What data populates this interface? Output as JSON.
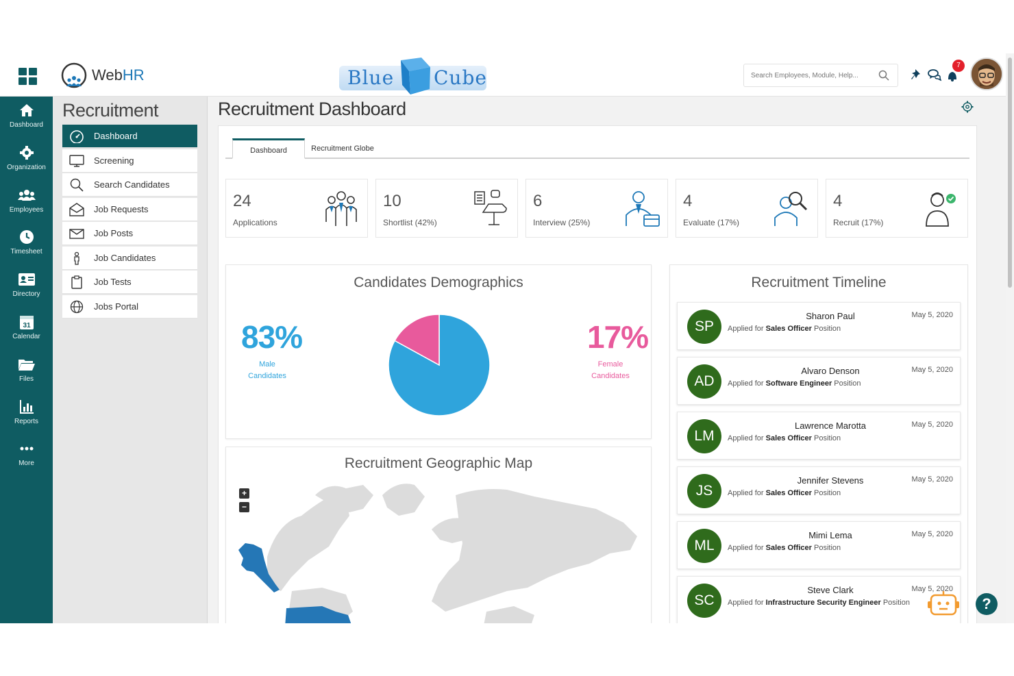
{
  "header": {
    "app_name_prefix": "Web",
    "app_name_suffix": "HR",
    "brand_word1": "Blue",
    "brand_word2": "Cube",
    "search_placeholder": "Search Employees, Module, Help...",
    "notification_count": "7"
  },
  "leftnav": {
    "items": [
      {
        "label": "Dashboard",
        "icon": "home-icon"
      },
      {
        "label": "Organization",
        "icon": "gear-icon"
      },
      {
        "label": "Employees",
        "icon": "users-icon"
      },
      {
        "label": "Timesheet",
        "icon": "clock-icon"
      },
      {
        "label": "Directory",
        "icon": "id-card-icon"
      },
      {
        "label": "Calendar",
        "icon": "calendar-icon"
      },
      {
        "label": "Files",
        "icon": "folder-icon"
      },
      {
        "label": "Reports",
        "icon": "chart-icon"
      },
      {
        "label": "More",
        "icon": "ellipsis-icon"
      }
    ],
    "calendar_day": "31"
  },
  "subnav": {
    "title": "Recruitment",
    "items": [
      {
        "label": "Dashboard",
        "icon": "dashboard-gauge-icon"
      },
      {
        "label": "Screening",
        "icon": "monitor-icon"
      },
      {
        "label": "Search Candidates",
        "icon": "magnifier-icon"
      },
      {
        "label": "Job Requests",
        "icon": "envelope-open-icon"
      },
      {
        "label": "Job Posts",
        "icon": "envelope-icon"
      },
      {
        "label": "Job Candidates",
        "icon": "person-icon"
      },
      {
        "label": "Job Tests",
        "icon": "clipboard-icon"
      },
      {
        "label": "Jobs Portal",
        "icon": "globe-icon"
      }
    ]
  },
  "main": {
    "title": "Recruitment Dashboard",
    "tabs": [
      {
        "label": "Dashboard"
      },
      {
        "label": "Recruitment Globe"
      }
    ],
    "stats": [
      {
        "value": "24",
        "label": "Applications",
        "icon": "team-icon"
      },
      {
        "value": "10",
        "label": "Shortlist (42%)",
        "icon": "checklist-chair-icon"
      },
      {
        "value": "6",
        "label": "Interview (25%)",
        "icon": "interviewer-icon"
      },
      {
        "value": "4",
        "label": "Evaluate (17%)",
        "icon": "evaluate-magnifier-icon"
      },
      {
        "value": "4",
        "label": "Recruit (17%)",
        "icon": "recruit-check-icon"
      }
    ],
    "demographics": {
      "title": "Candidates Demographics",
      "male_pct": "83%",
      "male_label_1": "Male",
      "male_label_2": "Candidates",
      "female_pct": "17%",
      "female_label_1": "Female",
      "female_label_2": "Candidates",
      "colors": {
        "male": "#2fa4dc",
        "female": "#e85a9c"
      }
    },
    "map": {
      "title": "Recruitment Geographic Map",
      "zoom_in": "+",
      "zoom_out": "−"
    },
    "timeline": {
      "title": "Recruitment Timeline",
      "entries": [
        {
          "initials": "SP",
          "name": "Sharon Paul",
          "prefix": "Applied for",
          "position": "Sales Officer",
          "suffix": "Position",
          "date": "May 5, 2020"
        },
        {
          "initials": "AD",
          "name": "Alvaro Denson",
          "prefix": "Applied for",
          "position": "Software Engineer",
          "suffix": "Position",
          "date": "May 5, 2020"
        },
        {
          "initials": "LM",
          "name": "Lawrence Marotta",
          "prefix": "Applied for",
          "position": "Sales Officer",
          "suffix": "Position",
          "date": "May 5, 2020"
        },
        {
          "initials": "JS",
          "name": "Jennifer Stevens",
          "prefix": "Applied for",
          "position": "Sales Officer",
          "suffix": "Position",
          "date": "May 5, 2020"
        },
        {
          "initials": "ML",
          "name": "Mimi Lema",
          "prefix": "Applied for",
          "position": "Sales Officer",
          "suffix": "Position",
          "date": "May 5, 2020"
        },
        {
          "initials": "SC",
          "name": "Steve Clark",
          "prefix": "Applied for",
          "position": "Infrastructure Security Engineer",
          "suffix": "Position",
          "date": "May 5, 2020"
        }
      ]
    },
    "help_label": "?"
  },
  "chart_data": {
    "type": "pie",
    "title": "Candidates Demographics",
    "categories": [
      "Male Candidates",
      "Female Candidates"
    ],
    "values": [
      83,
      17
    ]
  }
}
